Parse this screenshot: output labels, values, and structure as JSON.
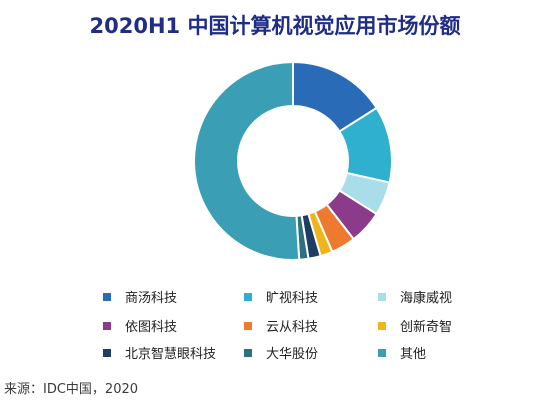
{
  "title": "2020H1 中国计算机视觉应用市场份额",
  "source": "来源：IDC中国，2020",
  "chart_data": {
    "type": "pie",
    "style": "donut",
    "title": "2020H1 中国计算机视觉应用市场份额",
    "legend_position": "bottom",
    "series": [
      {
        "name": "商汤科技",
        "value": 16.0,
        "color": "#2a6bb8"
      },
      {
        "name": "旷视科技",
        "value": 12.5,
        "color": "#2fb0cf"
      },
      {
        "name": "海康威视",
        "value": 5.5,
        "color": "#a9dde9"
      },
      {
        "name": "依图科技",
        "value": 5.5,
        "color": "#8b3a8c"
      },
      {
        "name": "云从科技",
        "value": 4.0,
        "color": "#ee7a30"
      },
      {
        "name": "创新奇智",
        "value": 2.0,
        "color": "#f1b51c"
      },
      {
        "name": "北京智慧眼科技",
        "value": 2.0,
        "color": "#1d3d63"
      },
      {
        "name": "大华股份",
        "value": 1.5,
        "color": "#2f6f7e"
      },
      {
        "name": "其他",
        "value": 51.0,
        "color": "#3a9eb5"
      }
    ]
  }
}
